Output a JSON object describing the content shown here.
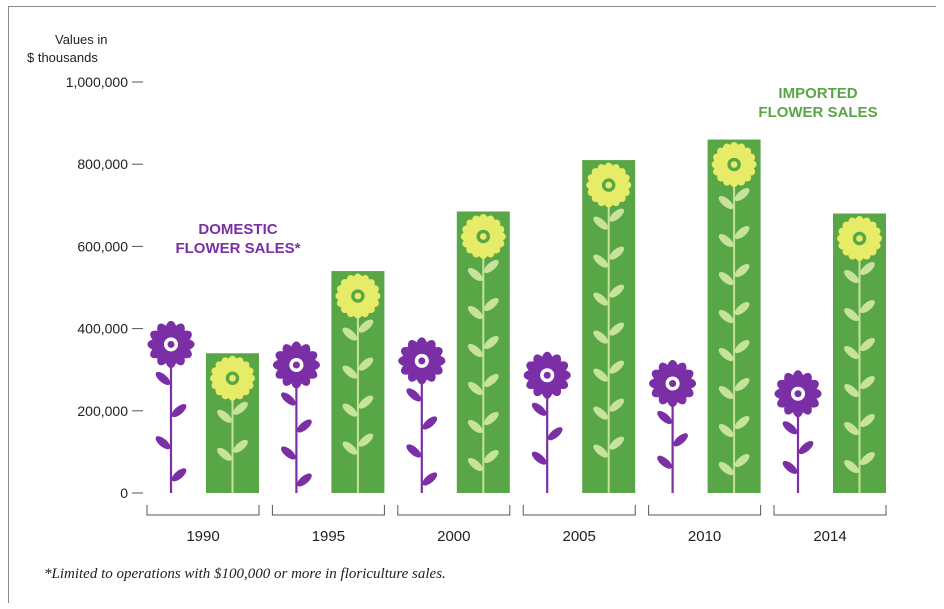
{
  "chart_data": {
    "type": "bar",
    "ylabel_line1": "Values in",
    "ylabel_line2": "$ thousands",
    "ylim": [
      0,
      1000000
    ],
    "yticks": [
      {
        "value": 0,
        "label": "0"
      },
      {
        "value": 200000,
        "label": "200,000"
      },
      {
        "value": 400000,
        "label": "400,000"
      },
      {
        "value": 600000,
        "label": "600,000"
      },
      {
        "value": 800000,
        "label": "800,000"
      },
      {
        "value": 1000000,
        "label": "1,000,000"
      }
    ],
    "categories": [
      "1990",
      "1995",
      "2000",
      "2005",
      "2010",
      "2014"
    ],
    "series": [
      {
        "name_line1": "DOMESTIC",
        "name_line2": "FLOWER SALES*",
        "values": [
          415000,
          365000,
          375000,
          340000,
          320000,
          295000
        ],
        "color": "#7b2fa6"
      },
      {
        "name_line1": "IMPORTED",
        "name_line2": "FLOWER SALES",
        "values": [
          340000,
          540000,
          685000,
          810000,
          860000,
          680000
        ],
        "color": "#58a646"
      }
    ],
    "footnote": "*Limited to operations with $100,000 or more in floriculture sales.",
    "colors": {
      "domestic": "#7b2fa6",
      "imported_bar": "#58a646",
      "imported_flower": "#e6ec68",
      "leaf_on_bar": "#c7e29b",
      "axis": "#555555"
    }
  }
}
